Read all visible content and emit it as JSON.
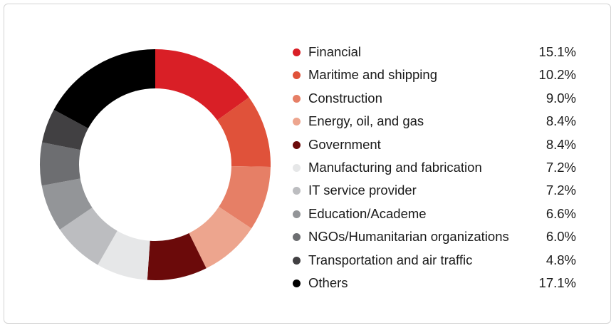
{
  "chart_data": {
    "type": "pie",
    "donut": true,
    "title": "",
    "categories": [
      "Financial",
      "Maritime and shipping",
      "Construction",
      "Energy, oil, and gas",
      "Government",
      "Manufacturing and fabrication",
      "IT service provider",
      "Education/Academe",
      "NGOs/Humanitarian organizations",
      "Transportation and air traffic",
      "Others"
    ],
    "values": [
      15.1,
      10.2,
      9.0,
      8.4,
      8.4,
      7.2,
      7.2,
      6.6,
      6.0,
      4.8,
      17.1
    ],
    "value_labels": [
      "15.1%",
      "10.2%",
      "9.0%",
      "8.4%",
      "8.4%",
      "7.2%",
      "7.2%",
      "6.6%",
      "6.0%",
      "4.8%",
      "17.1%"
    ],
    "colors": [
      "#d91f26",
      "#e0523a",
      "#e67f66",
      "#eda58e",
      "#6b0a0a",
      "#e6e7e8",
      "#bcbdc0",
      "#939598",
      "#6d6e71",
      "#414042",
      "#000000"
    ],
    "legend_position": "right"
  }
}
